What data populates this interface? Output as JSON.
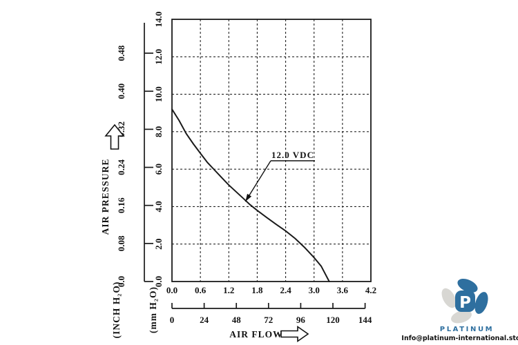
{
  "chart_data": {
    "type": "line",
    "title": "",
    "grid": true,
    "line_color": "#1a1a1a",
    "series": [
      {
        "name": "12.0 VDC",
        "point_format": [
          "air_flow_upper_scale",
          "air_pressure_mm_h2o"
        ],
        "points": [
          [
            0.0,
            9.2
          ],
          [
            0.15,
            8.6
          ],
          [
            0.3,
            7.9
          ],
          [
            0.45,
            7.35
          ],
          [
            0.6,
            6.85
          ],
          [
            0.75,
            6.35
          ],
          [
            0.9,
            5.95
          ],
          [
            1.05,
            5.55
          ],
          [
            1.2,
            5.15
          ],
          [
            1.35,
            4.8
          ],
          [
            1.5,
            4.45
          ],
          [
            1.65,
            4.1
          ],
          [
            1.8,
            3.8
          ],
          [
            2.0,
            3.42
          ],
          [
            2.2,
            3.05
          ],
          [
            2.4,
            2.7
          ],
          [
            2.6,
            2.3
          ],
          [
            2.8,
            1.82
          ],
          [
            3.0,
            1.28
          ],
          [
            3.15,
            0.82
          ],
          [
            3.32,
            0.0
          ]
        ]
      }
    ],
    "annotation": {
      "label": "12.0 VDC",
      "target_point": [
        1.55,
        4.27
      ]
    },
    "axes": {
      "pressure_title": "AIR PRESSURE",
      "flow_title": "AIR FLOW",
      "pressure_inch": {
        "title": "(INCH H₂O)",
        "ticks": [
          "0.0",
          "0.08",
          "0.16",
          "0.24",
          "0.32",
          "0.40",
          "0.48"
        ],
        "range": [
          0,
          0.48
        ]
      },
      "pressure_mm": {
        "title": "(mm H₂O)",
        "ticks": [
          "0.0",
          "2.0",
          "4.0",
          "6.0",
          "8.0",
          "10.0",
          "12.0",
          "14.0"
        ],
        "range": [
          0,
          14
        ]
      },
      "flow_upper": {
        "ticks": [
          "0.0",
          "0.6",
          "1.2",
          "1.8",
          "2.4",
          "3.0",
          "3.6",
          "4.2"
        ],
        "range": [
          0,
          4.2
        ]
      },
      "flow_lower": {
        "ticks": [
          "0",
          "24",
          "48",
          "72",
          "96",
          "120",
          "144"
        ],
        "range": [
          0,
          144
        ]
      }
    },
    "icons": {
      "pressure_arrow": "up-arrow",
      "flow_arrow": "right-arrow"
    }
  },
  "branding": {
    "logo_text": "PLATINUM",
    "logo_letter": "P",
    "email": "Info@platinum-international.store",
    "brand_blue": "#2e6f9f",
    "brand_gray": "#d8d7d3"
  }
}
